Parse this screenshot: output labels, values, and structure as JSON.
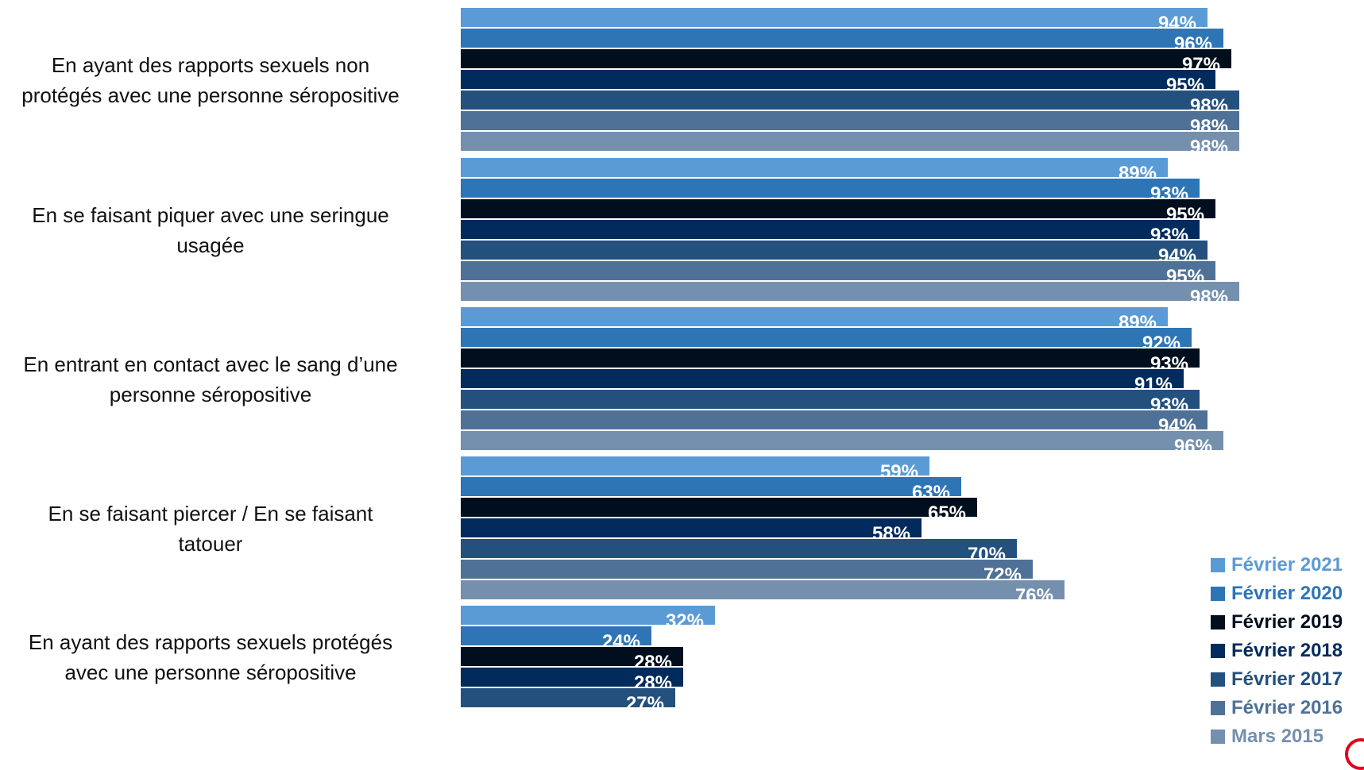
{
  "chart_data": {
    "type": "bar",
    "orientation": "horizontal",
    "categories": [
      [
        "En ayant des rapports sexuels non",
        "protégés avec une personne séropositive"
      ],
      [
        "En se faisant piquer avec une seringue",
        "usagée"
      ],
      [
        "En entrant en contact avec le sang d’une",
        "personne séropositive"
      ],
      [
        "En se faisant piercer / En se faisant",
        "tatouer"
      ],
      [
        "En ayant des rapports sexuels protégés",
        "avec une personne séropositive"
      ]
    ],
    "series": [
      {
        "name": "Février 2021",
        "color": "#5b9bd5",
        "values": [
          94,
          89,
          89,
          59,
          32
        ],
        "labels": [
          "94%",
          "89%",
          "89%",
          "59%",
          "32%"
        ]
      },
      {
        "name": "Février 2020",
        "color": "#2e75b6",
        "values": [
          96,
          93,
          92,
          63,
          24
        ],
        "labels": [
          "96%",
          "93%",
          "92%",
          "63%",
          "24%"
        ]
      },
      {
        "name": "Février 2019",
        "color": "#000e1e",
        "values": [
          97,
          95,
          93,
          65,
          28
        ],
        "labels": [
          "97%",
          "95%",
          "93%",
          "65%",
          "28%"
        ]
      },
      {
        "name": "Février 2018",
        "color": "#002b5c",
        "values": [
          95,
          93,
          91,
          58,
          28
        ],
        "labels": [
          "95%",
          "93%",
          "91%",
          "58%",
          "28%"
        ]
      },
      {
        "name": "Février 2017",
        "color": "#24507e",
        "values": [
          98,
          94,
          93,
          70,
          27
        ],
        "labels": [
          "98%",
          "94%",
          "93%",
          "70%",
          "27%"
        ]
      },
      {
        "name": "Février 2016",
        "color": "#4f7197",
        "values": [
          98,
          95,
          94,
          72,
          null
        ],
        "labels": [
          "98%",
          "95%",
          "94%",
          "72%",
          ""
        ]
      },
      {
        "name": "Mars 2015",
        "color": "#7590ae",
        "values": [
          98,
          98,
          96,
          76,
          null
        ],
        "labels": [
          "98%",
          "98%",
          "96%",
          "76%",
          ""
        ]
      }
    ],
    "xlim": [
      0,
      100
    ],
    "grid": false,
    "legend_position": "bottom-right"
  }
}
